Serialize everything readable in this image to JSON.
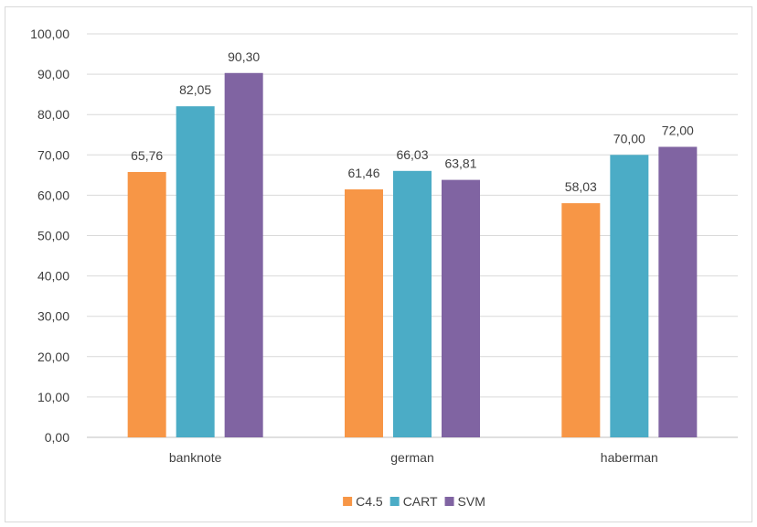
{
  "chart_data": {
    "type": "bar",
    "title": "",
    "xlabel": "",
    "ylabel": "",
    "categories": [
      "banknote",
      "german",
      "haberman"
    ],
    "series": [
      {
        "name": "C4.5",
        "color": "#f79646",
        "values": [
          65.76,
          61.46,
          58.03
        ],
        "labels": [
          "65,76",
          "61,46",
          "58,03"
        ]
      },
      {
        "name": "CART",
        "color": "#4bacc6",
        "values": [
          82.05,
          66.03,
          70.0
        ],
        "labels": [
          "82,05",
          "66,03",
          "70,00"
        ]
      },
      {
        "name": "SVM",
        "color": "#8064a2",
        "values": [
          90.3,
          63.81,
          72.0
        ],
        "labels": [
          "90,30",
          "63,81",
          "72,00"
        ]
      }
    ],
    "ylim": [
      0,
      100
    ],
    "y_ticks": [
      0,
      10,
      20,
      30,
      40,
      50,
      60,
      70,
      80,
      90,
      100
    ],
    "y_tick_labels": [
      "0,00",
      "10,00",
      "20,00",
      "30,00",
      "40,00",
      "50,00",
      "60,00",
      "70,00",
      "80,00",
      "90,00",
      "100,00"
    ],
    "grid": true,
    "legend_position": "bottom"
  }
}
